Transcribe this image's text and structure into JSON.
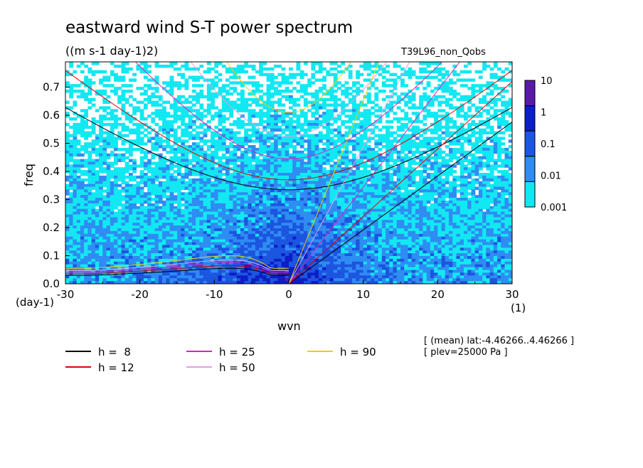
{
  "chart_data": {
    "type": "heatmap",
    "title": "eastward wind S-T power spectrum",
    "subtitle": "((m s-1 day-1)2)",
    "run_label": "T39L96_non_Qobs",
    "xlabel": "wvn",
    "ylabel": "freq",
    "x_unit_label": "(1)",
    "y_unit_label": "(day-1)",
    "xlim": [
      -30,
      30
    ],
    "ylim": [
      0,
      0.79
    ],
    "x_ticks": [
      "-30",
      "-20",
      "-10",
      "0",
      "10",
      "20",
      "30"
    ],
    "x_tick_values": [
      -30,
      -20,
      -10,
      0,
      10,
      20,
      30
    ],
    "y_ticks": [
      "0.0",
      "0.1",
      "0.2",
      "0.3",
      "0.4",
      "0.5",
      "0.6",
      "0.7"
    ],
    "y_tick_values": [
      0,
      0.1,
      0.2,
      0.3,
      0.4,
      0.5,
      0.6,
      0.7
    ],
    "colorbar": {
      "levels": [
        "10",
        "1",
        "0.1",
        "0.01",
        "0.001"
      ],
      "colors": [
        "#5a1aa8",
        "#0c1ec6",
        "#1c55e0",
        "#2f8cf2",
        "#12e8f2"
      ]
    },
    "legend": [
      {
        "label": "h =  8",
        "color": "#000000"
      },
      {
        "label": "h = 12",
        "color": "#e00000"
      },
      {
        "label": "h = 25",
        "color": "#e020c0"
      },
      {
        "label": "h = 50",
        "color": "#e0a0e0"
      },
      {
        "label": "h = 90",
        "color": "#f0d000"
      }
    ],
    "dispersion_curves": {
      "equivalent_depths": [
        8,
        12,
        25,
        50,
        90
      ],
      "kelvin_speeds_wvn_per_day": [
        0.0192,
        0.024,
        0.0344,
        0.0487,
        0.0653
      ],
      "inertio_gravity_min_freq": [
        0.335,
        0.37,
        0.445,
        0.525,
        0.61
      ],
      "rossby_plateau_freq": [
        0.055,
        0.065,
        0.075,
        0.085,
        0.1
      ]
    },
    "annotation_1": "[ (mean) lat:-4.46266..4.46266 ]",
    "annotation_2": "[ plev=25000 Pa ]"
  }
}
